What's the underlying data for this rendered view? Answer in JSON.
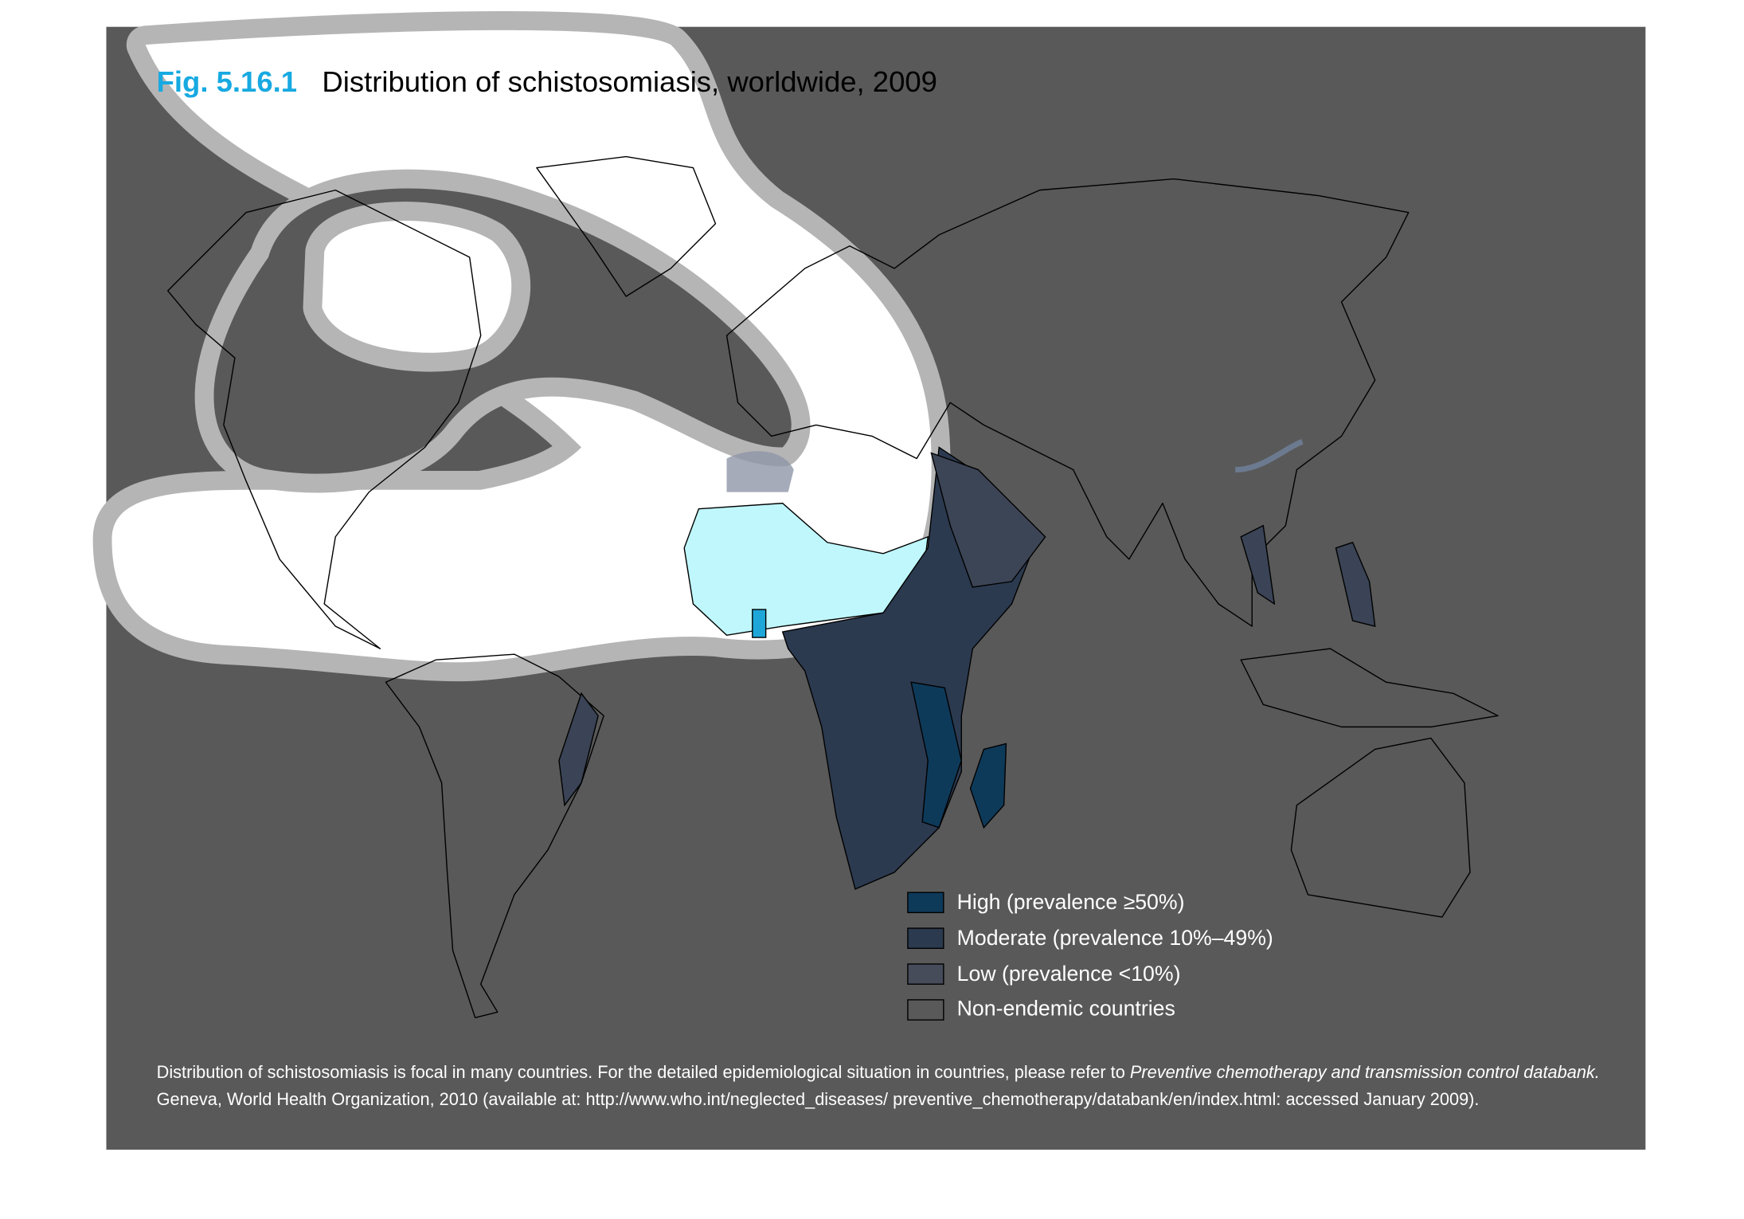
{
  "header": {
    "figure_number": "Fig. 5.16.1",
    "title": "Distribution of schistosomiasis, worldwide, 2009"
  },
  "legend": {
    "items": [
      {
        "label": "High (prevalence ≥50%)"
      },
      {
        "label": "Moderate (prevalence 10%–49%)"
      },
      {
        "label": "Low (prevalence <10%)"
      },
      {
        "label": "Non-endemic countries"
      }
    ]
  },
  "footnote": {
    "line_1": "Distribution of schistosomiasis is focal in many countries. For the detailed epidemiological situation in countries, please refer to ",
    "line_1_italic": "Preventive chemotherapy and transmission control databank.",
    "line_2": "Geneva, World Health Organization, 2010 (available at: http://www.who.int/neglected_diseases/ preventive_chemotherapy/databank/en/index.html: accessed January 2009)."
  }
}
